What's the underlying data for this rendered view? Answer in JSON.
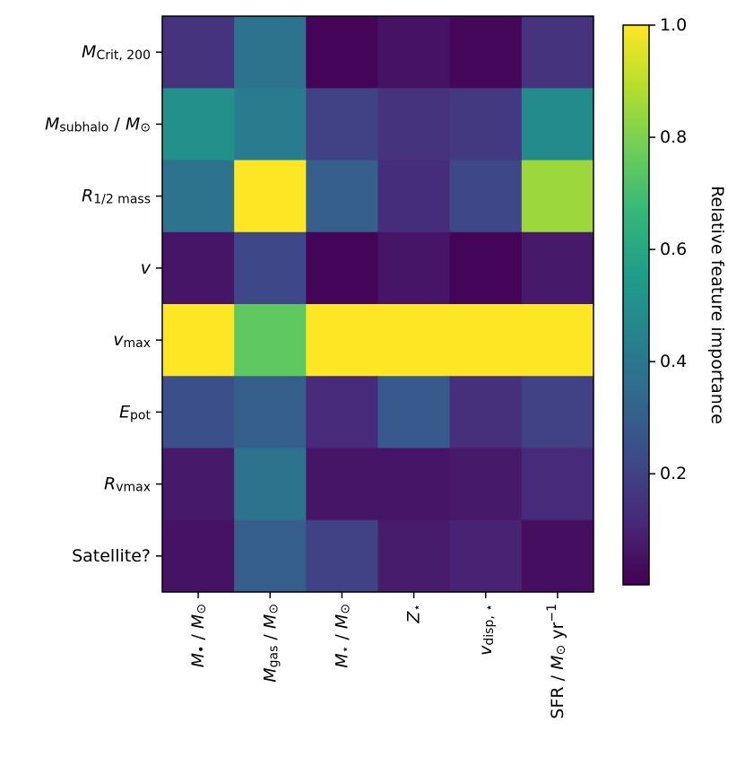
{
  "chart_data": {
    "type": "heatmap",
    "colormap": "viridis",
    "x_categories": [
      "$M$_{•} / $M$_{⊙}",
      "$M$_{gas} / $M$_{⊙}",
      "$M$_{⋆} / $M$_{⊙}",
      "$Z$_{⋆}",
      "$v$_{disp, ⋆}",
      "SFR / $M$_{⊙} yr^{−1}"
    ],
    "y_categories": [
      "$M$_{Crit, 200}",
      "$M$_{subhalo} / $M$_{⊙}",
      "$R$_{1/2 mass}",
      "$v$",
      "$v$_{max}",
      "$E$_{pot}",
      "$R$_{vmax}",
      "Satellite?"
    ],
    "values": [
      [
        0.15,
        0.38,
        0.01,
        0.05,
        0.02,
        0.15
      ],
      [
        0.5,
        0.42,
        0.2,
        0.15,
        0.17,
        0.48
      ],
      [
        0.38,
        1.0,
        0.3,
        0.13,
        0.22,
        0.85
      ],
      [
        0.06,
        0.22,
        0.01,
        0.06,
        0.01,
        0.07
      ],
      [
        1.0,
        0.75,
        1.0,
        1.0,
        1.0,
        1.0
      ],
      [
        0.25,
        0.3,
        0.12,
        0.28,
        0.14,
        0.2
      ],
      [
        0.07,
        0.38,
        0.06,
        0.06,
        0.07,
        0.12
      ],
      [
        0.05,
        0.3,
        0.2,
        0.08,
        0.1,
        0.04
      ]
    ],
    "colorbar_label": "Relative feature importance",
    "clim": [
      0.002,
      1.0
    ],
    "cticks": [
      0.2,
      0.4,
      0.6,
      0.8,
      {
        "value": 1.0,
        "label": "1.0"
      }
    ]
  }
}
